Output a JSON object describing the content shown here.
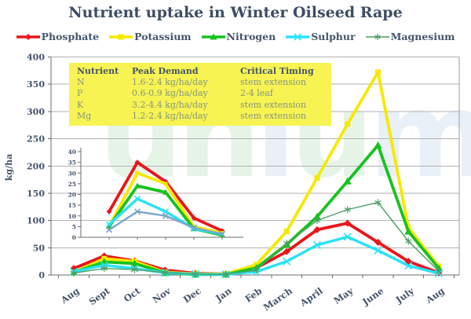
{
  "title": "Nutrient uptake in Winter Oilseed Rape",
  "watermark": {
    "text": "unium",
    "letter_colors": [
      "#8fcf96",
      "#8fcf96",
      "#9fbce4",
      "#8fcf96",
      "#9fbce4"
    ]
  },
  "legend": {
    "items": [
      {
        "label": "Phosphate",
        "color": "#e8161c",
        "marker": "diamond"
      },
      {
        "label": "Potassium",
        "color": "#f6e900",
        "marker": "square"
      },
      {
        "label": "Nitrogen",
        "color": "#17c21e",
        "marker": "triangle"
      },
      {
        "label": "Sulphur",
        "color": "#2ae2f5",
        "marker": "x"
      },
      {
        "label": "Magnesium",
        "color": "#4d9e63",
        "marker": "star"
      }
    ]
  },
  "table": {
    "background_color": "#f7f353",
    "headers": [
      "Nutrient",
      "Peak Demand",
      "Critical Timing"
    ],
    "rows": [
      [
        "N",
        "1.6-2.4 kg/ha/day",
        "stem extension"
      ],
      [
        "P",
        "0.6-0.9 kg/ha/day",
        "2-4 leaf"
      ],
      [
        "K",
        "3.2-4.4 kg/ha/day",
        "stem extension"
      ],
      [
        "Mg",
        "1.2-2.4 kg/ha/day",
        "stem extension"
      ]
    ]
  },
  "chart_data": [
    {
      "type": "line",
      "title": "Nutrient uptake in Winter Oilseed Rape",
      "xlabel": "",
      "ylabel": "kg/ha",
      "ylim": [
        0,
        400
      ],
      "ytick_step": 50,
      "grid": true,
      "legend_position": "top",
      "categories": [
        "Aug",
        "Sept",
        "Oct",
        "Nov",
        "Dec",
        "Jan",
        "Feb",
        "March",
        "April",
        "May",
        "June",
        "July",
        "Aug"
      ],
      "series": [
        {
          "name": "Phosphate",
          "color": "#e8161c",
          "marker": "diamond",
          "line_width": 3.8,
          "values": [
            12,
            35,
            26,
            9,
            3,
            2,
            13,
            43,
            83,
            95,
            60,
            25,
            4
          ]
        },
        {
          "name": "Potassium",
          "color": "#f6e900",
          "marker": "square",
          "line_width": 3.8,
          "values": [
            5,
            30,
            25,
            5,
            2,
            2,
            19,
            80,
            178,
            277,
            372,
            87,
            16
          ]
        },
        {
          "name": "Nitrogen",
          "color": "#17c21e",
          "marker": "triangle",
          "line_width": 3.8,
          "values": [
            5,
            24,
            21,
            4,
            1,
            1,
            13,
            56,
            107,
            172,
            238,
            80,
            12
          ]
        },
        {
          "name": "Sulphur",
          "color": "#2ae2f5",
          "marker": "x",
          "line_width": 3.4,
          "values": [
            6,
            18,
            12,
            4,
            1.5,
            1,
            6,
            25,
            55,
            70,
            45,
            17,
            3
          ]
        },
        {
          "name": "Magnesium",
          "color": "#4d9e63",
          "marker": "star",
          "line_width": 1.4,
          "values": [
            3.5,
            12,
            10,
            4.5,
            1.5,
            1,
            9,
            58,
            100,
            120,
            133,
            62,
            7
          ]
        }
      ]
    },
    {
      "type": "line",
      "position": "inset top-left (magnified autumn detail)",
      "ylim": [
        0,
        40
      ],
      "ytick_step": 5,
      "grid": false,
      "categories": [
        "Aug",
        "Sept",
        "Oct",
        "Nov",
        "Dec"
      ],
      "series": [
        {
          "name": "Phosphate",
          "color": "#e8161c",
          "marker": "diamond",
          "line_width": 3.8,
          "values": [
            12,
            35,
            26,
            9,
            3
          ]
        },
        {
          "name": "Potassium",
          "color": "#f6e900",
          "marker": "square",
          "line_width": 3.8,
          "values": [
            5,
            30,
            25,
            5,
            2
          ]
        },
        {
          "name": "Nitrogen",
          "color": "#17c21e",
          "marker": "triangle",
          "line_width": 3.8,
          "values": [
            5,
            24,
            21,
            4,
            1
          ]
        },
        {
          "name": "Sulphur",
          "color": "#2ae2f5",
          "marker": "x",
          "line_width": 3.4,
          "values": [
            6,
            18,
            12,
            4,
            1.5
          ]
        },
        {
          "name": "Magnesium",
          "color": "#79a6c8",
          "marker": "x",
          "line_width": 2.4,
          "values": [
            3.5,
            12,
            10,
            4.5,
            1.5
          ]
        }
      ]
    }
  ]
}
